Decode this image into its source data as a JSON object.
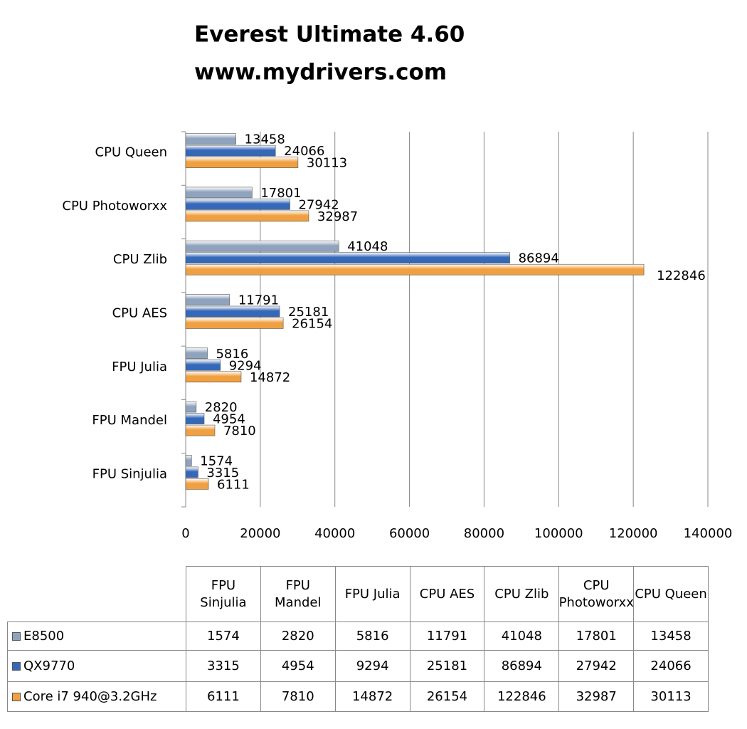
{
  "chart_data": {
    "type": "bar",
    "orientation": "horizontal",
    "title": "Everest Ultimate 4.60",
    "subtitle": "www.mydrivers.com",
    "categories": [
      "FPU Sinjulia",
      "FPU Mandel",
      "FPU Julia",
      "CPU AES",
      "CPU Zlib",
      "CPU Photoworxx",
      "CPU Queen"
    ],
    "series": [
      {
        "name": "E8500",
        "color": "#8fa3bd",
        "values": [
          1574,
          2820,
          5816,
          11791,
          41048,
          17801,
          13458
        ]
      },
      {
        "name": "QX9770",
        "color": "#3568b8",
        "values": [
          3315,
          4954,
          9294,
          25181,
          86894,
          27942,
          24066
        ]
      },
      {
        "name": "Core i7 940@3.2GHz",
        "color": "#f0a040",
        "values": [
          6111,
          7810,
          14872,
          26154,
          122846,
          32987,
          30113
        ]
      }
    ],
    "xlim": [
      0,
      140000
    ],
    "xticks": [
      0,
      20000,
      40000,
      60000,
      80000,
      100000,
      120000,
      140000
    ],
    "grid": true
  }
}
